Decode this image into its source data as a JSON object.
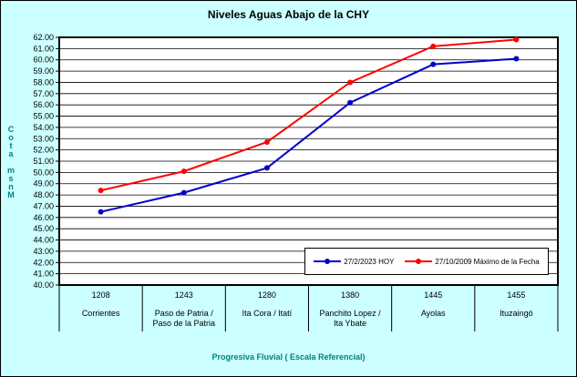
{
  "colors": {
    "page_background": "#CCFFFF",
    "plot_background": "#FFFFFF",
    "axis_title": "#008080",
    "gridline": "#000000"
  },
  "chart_data": {
    "type": "line",
    "title": "Niveles Aguas Abajo de la CHY",
    "ylabel": "Cota msnM",
    "xlabel": "Progresiva Fluvial (  Escala Referencial)",
    "ylim": [
      40,
      62
    ],
    "ytick_step": 1,
    "ytick_format": "0.00",
    "grid": "horizontal",
    "legend_position": "bottom-right-inside",
    "categories": [
      {
        "progresiva": "1208",
        "lines": [
          "Corrientes"
        ]
      },
      {
        "progresiva": "1243",
        "lines": [
          "Paso de Patria /",
          "Paso de la Patria"
        ]
      },
      {
        "progresiva": "1280",
        "lines": [
          "Ita Cora / Itatí"
        ]
      },
      {
        "progresiva": "1380",
        "lines": [
          "Panchito Lopez /",
          "Ita Ybate"
        ]
      },
      {
        "progresiva": "1445",
        "lines": [
          "Ayolas"
        ]
      },
      {
        "progresiva": "1455",
        "lines": [
          "Ituzaingó"
        ]
      }
    ],
    "series": [
      {
        "name": "27/2/2023 HOY",
        "color": "#0000CC",
        "values": [
          46.5,
          48.2,
          50.4,
          56.2,
          59.6,
          60.1
        ]
      },
      {
        "name": "27/10/2009 Máximo de la Fecha",
        "color": "#FF0000",
        "values": [
          48.4,
          50.1,
          52.7,
          58.0,
          61.2,
          61.8
        ]
      }
    ]
  }
}
